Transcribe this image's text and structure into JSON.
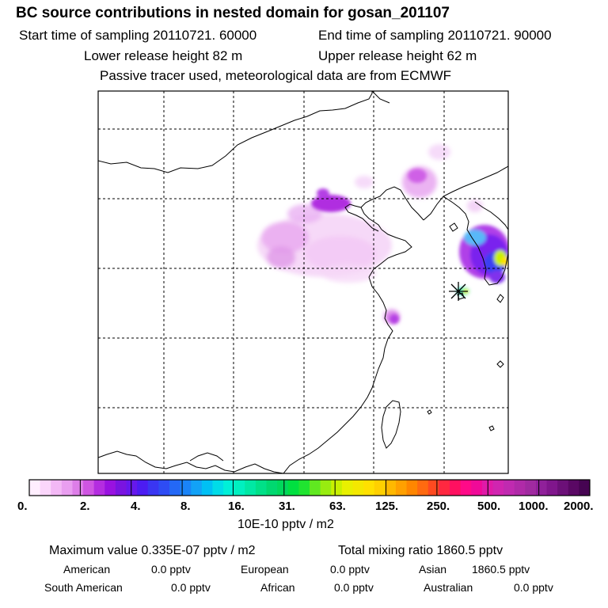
{
  "header": {
    "title": "BC  source contributions in nested domain for gosan_201107",
    "start_time": "Start time of sampling 20110721. 60000",
    "end_time": "End time of sampling 20110721. 90000",
    "lower_height": "Lower release height   82 m",
    "upper_height": "Upper release height   62 m",
    "tracer_note": "Passive tracer used, meteorological data are from ECMWF"
  },
  "legend": {
    "labels": [
      "0.",
      "2.",
      "4.",
      "8.",
      "16.",
      "31.",
      "63.",
      "125.",
      "250.",
      "500.",
      "1000.",
      "2000."
    ],
    "units": "10E-10 pptv / m2",
    "colors": [
      "#ffeefe",
      "#fbd6fb",
      "#f3b8f5",
      "#e99ef0",
      "#dd7ee8",
      "#cf55e2",
      "#b42de0",
      "#9912e0",
      "#7a14e0",
      "#6618ec",
      "#4c1cf2",
      "#3a36f2",
      "#2e4cf4",
      "#2468f6",
      "#1a84f7",
      "#12a2f7",
      "#00c0f4",
      "#00dce8",
      "#00f0d8",
      "#00f0c0",
      "#00e8a4",
      "#00e088",
      "#00d870",
      "#00d85c",
      "#00e040",
      "#20e430",
      "#60e820",
      "#98ec10",
      "#c8f000",
      "#e8f000",
      "#f4e800",
      "#ffe000",
      "#ffd000",
      "#ffb800",
      "#ffa000",
      "#ff8600",
      "#ff6a10",
      "#ff4a20",
      "#ff2840",
      "#ff1060",
      "#ff0a88",
      "#f00a98",
      "#e01aa8",
      "#d025b0",
      "#c02ab0",
      "#b02aa8",
      "#a02aa0",
      "#90209a",
      "#80168c",
      "#6c1078",
      "#5a0864",
      "#460452"
    ]
  },
  "stats": {
    "max_value": "Maximum value  0.335E-07 pptv / m2",
    "total_mixing": "Total mixing ratio     1860.5 pptv"
  },
  "regions": {
    "american_label": "American",
    "american_value": "0.0 pptv",
    "european_label": "European",
    "european_value": "0.0 pptv",
    "asian_label": "Asian",
    "asian_value": "1860.5 pptv",
    "south_american_label": "South American",
    "south_american_value": "0.0 pptv",
    "african_label": "African",
    "african_value": "0.0 pptv",
    "australian_label": "Australian",
    "australian_value": "0.0 pptv"
  }
}
